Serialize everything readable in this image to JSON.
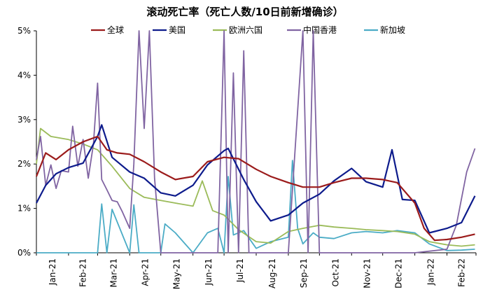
{
  "chart_data": {
    "type": "line",
    "title": "滚动死亡率（死亡人数/10日前新增确诊）",
    "xlabel": "",
    "ylabel": "",
    "ylim": [
      0,
      0.05
    ],
    "y_ticks": [
      "0%",
      "1%",
      "2%",
      "3%",
      "4%",
      "5%"
    ],
    "x_ticks": [
      "Jan-21",
      "Feb-21",
      "Mar-21",
      "Apr-21",
      "May-21",
      "Jun-21",
      "Jul-21",
      "Aug-21",
      "Sep-21",
      "Oct-21",
      "Nov-21",
      "Dec-21",
      "Jan-22",
      "Feb-22"
    ],
    "grid": false,
    "legend_position": "top",
    "series": [
      {
        "name": "全球",
        "color": "#9b1b1b",
        "x": [
          "2021-01-01",
          "2021-01-10",
          "2021-01-20",
          "2021-02-01",
          "2021-02-15",
          "2021-03-01",
          "2021-03-10",
          "2021-03-20",
          "2021-04-01",
          "2021-04-15",
          "2021-05-01",
          "2021-05-15",
          "2021-06-01",
          "2021-06-15",
          "2021-07-01",
          "2021-07-15",
          "2021-08-01",
          "2021-08-15",
          "2021-09-01",
          "2021-09-15",
          "2021-10-01",
          "2021-10-15",
          "2021-11-01",
          "2021-11-15",
          "2021-12-01",
          "2021-12-15",
          "2022-01-01",
          "2022-01-10",
          "2022-01-20",
          "2022-02-01",
          "2022-02-15",
          "2022-02-28"
        ],
        "y": [
          0.0172,
          0.0225,
          0.021,
          0.0232,
          0.025,
          0.0262,
          0.0232,
          0.0225,
          0.0222,
          0.0205,
          0.0182,
          0.0165,
          0.0172,
          0.0205,
          0.0215,
          0.0212,
          0.0188,
          0.0172,
          0.0158,
          0.0148,
          0.0148,
          0.0158,
          0.0168,
          0.0168,
          0.0165,
          0.0158,
          0.0112,
          0.0055,
          0.0028,
          0.003,
          0.0035,
          0.0042
        ]
      },
      {
        "name": "美国",
        "color": "#0d1b8c",
        "x": [
          "2021-01-01",
          "2021-01-10",
          "2021-01-20",
          "2021-02-01",
          "2021-02-15",
          "2021-03-01",
          "2021-03-05",
          "2021-03-15",
          "2021-04-01",
          "2021-04-15",
          "2021-05-01",
          "2021-05-15",
          "2021-06-01",
          "2021-06-15",
          "2021-07-01",
          "2021-07-05",
          "2021-07-20",
          "2021-08-01",
          "2021-08-15",
          "2021-09-01",
          "2021-09-15",
          "2021-10-01",
          "2021-10-15",
          "2021-11-01",
          "2021-11-15",
          "2021-12-01",
          "2021-12-10",
          "2021-12-20",
          "2022-01-01",
          "2022-01-15",
          "2022-02-01",
          "2022-02-15",
          "2022-02-28"
        ],
        "y": [
          0.0112,
          0.0152,
          0.0178,
          0.0192,
          0.0202,
          0.0262,
          0.0288,
          0.0215,
          0.0182,
          0.0168,
          0.0135,
          0.0128,
          0.0152,
          0.0198,
          0.023,
          0.0235,
          0.0165,
          0.0115,
          0.0072,
          0.0085,
          0.0112,
          0.0132,
          0.0162,
          0.019,
          0.016,
          0.0148,
          0.0232,
          0.012,
          0.0118,
          0.0045,
          0.0055,
          0.0068,
          0.0128
        ]
      },
      {
        "name": "欧洲六国",
        "color": "#9bbb59",
        "x": [
          "2021-01-01",
          "2021-01-05",
          "2021-01-15",
          "2021-02-01",
          "2021-02-15",
          "2021-03-01",
          "2021-03-15",
          "2021-04-01",
          "2021-04-15",
          "2021-05-01",
          "2021-05-15",
          "2021-06-01",
          "2021-06-10",
          "2021-06-20",
          "2021-07-01",
          "2021-07-15",
          "2021-08-01",
          "2021-08-15",
          "2021-09-01",
          "2021-09-15",
          "2021-10-01",
          "2021-10-15",
          "2021-11-01",
          "2021-11-15",
          "2021-12-01",
          "2021-12-15",
          "2022-01-01",
          "2022-01-15",
          "2022-02-01",
          "2022-02-15",
          "2022-02-28"
        ],
        "y": [
          0.02,
          0.028,
          0.0262,
          0.0255,
          0.0245,
          0.0232,
          0.0195,
          0.0145,
          0.0125,
          0.0118,
          0.0112,
          0.0105,
          0.0162,
          0.0095,
          0.0085,
          0.0052,
          0.0025,
          0.0022,
          0.0048,
          0.0055,
          0.0062,
          0.0058,
          0.0055,
          0.0052,
          0.005,
          0.0048,
          0.0042,
          0.0025,
          0.0018,
          0.0015,
          0.0018
        ]
      },
      {
        "name": "中国香港",
        "color": "#8064a2",
        "x": [
          "2021-01-01",
          "2021-01-05",
          "2021-01-10",
          "2021-01-15",
          "2021-01-20",
          "2021-01-25",
          "2021-02-01",
          "2021-02-05",
          "2021-02-10",
          "2021-02-15",
          "2021-02-20",
          "2021-02-25",
          "2021-03-01",
          "2021-03-05",
          "2021-03-10",
          "2021-03-15",
          "2021-03-20",
          "2021-03-25",
          "2021-04-01",
          "2021-04-05",
          "2021-04-10",
          "2021-04-15",
          "2021-04-20",
          "2021-04-25",
          "2021-05-01",
          "2021-05-15",
          "2021-06-01",
          "2021-06-15",
          "2021-06-25",
          "2021-07-01",
          "2021-07-05",
          "2021-07-10",
          "2021-07-15",
          "2021-07-20",
          "2021-07-25",
          "2021-08-01",
          "2021-08-15",
          "2021-09-01",
          "2021-09-15",
          "2021-09-20",
          "2021-09-25",
          "2021-10-01",
          "2021-11-01",
          "2021-12-01",
          "2022-01-01",
          "2022-02-01",
          "2022-02-10",
          "2022-02-20",
          "2022-02-28"
        ],
        "y": [
          0.021,
          0.0262,
          0.0152,
          0.0198,
          0.0145,
          0.0185,
          0.0182,
          0.0285,
          0.0195,
          0.0255,
          0.0168,
          0.0245,
          0.0382,
          0.0165,
          0.0142,
          0.0118,
          0.0115,
          0.0092,
          0.0055,
          0.02,
          0.05,
          0.028,
          0.05,
          0.0168,
          0.0,
          0.0,
          0.0,
          0.0,
          0.0,
          0.05,
          0.0,
          0.0405,
          0.0,
          0.0455,
          0.0,
          0.0,
          0.0,
          0.0,
          0.05,
          0.0,
          0.05,
          0.0,
          0.0,
          0.0,
          0.0,
          0.0008,
          0.0062,
          0.0182,
          0.0235
        ]
      },
      {
        "name": "新加坡",
        "color": "#4bacc6",
        "x": [
          "2021-01-01",
          "2021-03-01",
          "2021-03-05",
          "2021-03-10",
          "2021-03-15",
          "2021-04-01",
          "2021-04-05",
          "2021-04-10",
          "2021-05-01",
          "2021-05-05",
          "2021-05-15",
          "2021-06-01",
          "2021-06-15",
          "2021-06-25",
          "2021-07-01",
          "2021-07-05",
          "2021-07-10",
          "2021-07-20",
          "2021-08-01",
          "2021-08-15",
          "2021-09-01",
          "2021-09-05",
          "2021-09-10",
          "2021-09-15",
          "2021-09-25",
          "2021-10-01",
          "2021-10-15",
          "2021-11-01",
          "2021-11-15",
          "2021-12-01",
          "2021-12-15",
          "2022-01-01",
          "2022-01-15",
          "2022-02-01",
          "2022-02-15",
          "2022-02-28"
        ],
        "y": [
          0.0,
          0.0,
          0.011,
          0.0,
          0.0098,
          0.0,
          0.0108,
          0.0,
          0.0,
          0.0065,
          0.0045,
          0.0,
          0.0045,
          0.0055,
          0.0,
          0.0172,
          0.004,
          0.005,
          0.001,
          0.0025,
          0.0035,
          0.0208,
          0.0055,
          0.002,
          0.0045,
          0.0035,
          0.0032,
          0.0045,
          0.0048,
          0.0045,
          0.005,
          0.0045,
          0.002,
          0.0005,
          0.0006,
          0.0008
        ]
      }
    ]
  }
}
